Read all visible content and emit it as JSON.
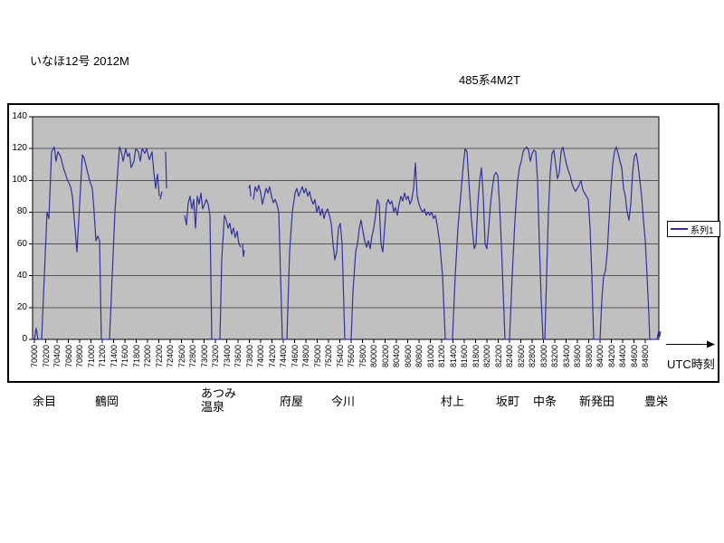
{
  "titles": {
    "train": "いなほ12号 2012M",
    "formation": "485系4M2T"
  },
  "legend": {
    "label": "系列1"
  },
  "x_axis": {
    "unit_label": "UTC時刻"
  },
  "colors": {
    "series_line": "#32329B",
    "plot_background": "#C0C0C0",
    "gridline": "#555555",
    "axis": "#000000"
  },
  "chart_data": {
    "type": "line",
    "title": "いなほ12号 2012M",
    "annotation": "485系4M2T",
    "xlabel": "UTC時刻",
    "ylim": [
      0,
      140
    ],
    "y_tick_step": 20,
    "y_tick_labels": [
      "140",
      "120",
      "100",
      "80",
      "60",
      "40",
      "20",
      "0"
    ],
    "grid": true,
    "legend_position": "right",
    "plot_background": "#C0C0C0",
    "x_time_base": "70000",
    "x_tick_interval_seconds": 120,
    "x_tick_labels": [
      "70000",
      "70200",
      "70400",
      "70600",
      "70800",
      "71000",
      "71200",
      "71400",
      "71600",
      "71800",
      "72000",
      "72200",
      "72400",
      "72600",
      "72800",
      "73000",
      "73200",
      "73400",
      "73600",
      "73800",
      "74000",
      "74200",
      "74400",
      "74600",
      "74800",
      "75000",
      "75200",
      "75400",
      "75600",
      "75800",
      "80000",
      "80200",
      "80400",
      "80600",
      "80800",
      "81000",
      "81200",
      "81400",
      "81600",
      "81800",
      "82000",
      "82200",
      "82400",
      "82600",
      "82800",
      "83000",
      "83200",
      "83400",
      "83600",
      "83800",
      "84000",
      "84200",
      "84400",
      "84600",
      "84800"
    ],
    "stations": [
      {
        "name": "余目",
        "x": 36
      },
      {
        "name": "鶴岡",
        "x": 105
      },
      {
        "name": "あつみ\n温泉",
        "x": 222,
        "y": 427
      },
      {
        "name": "府屋",
        "x": 309
      },
      {
        "name": "今川",
        "x": 366
      },
      {
        "name": "村上",
        "x": 487
      },
      {
        "name": "坂町",
        "x": 548
      },
      {
        "name": "中条",
        "x": 589
      },
      {
        "name": "新発田",
        "x": 640
      },
      {
        "name": "豊栄",
        "x": 712
      }
    ],
    "series": [
      {
        "name": "系列1",
        "color": "#32329B",
        "points_time_speed": [
          [
            0,
            0
          ],
          [
            19,
            7
          ],
          [
            38,
            0
          ],
          [
            77,
            0
          ],
          [
            134,
            80
          ],
          [
            154,
            76
          ],
          [
            182,
            118
          ],
          [
            211,
            121
          ],
          [
            230,
            112
          ],
          [
            250,
            118
          ],
          [
            278,
            115
          ],
          [
            307,
            108
          ],
          [
            346,
            101
          ],
          [
            384,
            96
          ],
          [
            403,
            90
          ],
          [
            451,
            55
          ],
          [
            480,
            85
          ],
          [
            509,
            116
          ],
          [
            528,
            114
          ],
          [
            557,
            107
          ],
          [
            586,
            100
          ],
          [
            614,
            95
          ],
          [
            634,
            80
          ],
          [
            653,
            62
          ],
          [
            672,
            65
          ],
          [
            691,
            62
          ],
          [
            710,
            0
          ],
          [
            797,
            0
          ],
          [
            826,
            40
          ],
          [
            854,
            80
          ],
          [
            883,
            105
          ],
          [
            902,
            121
          ],
          [
            922,
            118
          ],
          [
            941,
            112
          ],
          [
            970,
            120
          ],
          [
            989,
            115
          ],
          [
            1008,
            117
          ],
          [
            1027,
            108
          ],
          [
            1056,
            112
          ],
          [
            1075,
            120
          ],
          [
            1104,
            118
          ],
          [
            1123,
            112
          ],
          [
            1142,
            120
          ],
          [
            1171,
            117
          ],
          [
            1190,
            120
          ],
          [
            1219,
            113
          ],
          [
            1248,
            118
          ],
          [
            1267,
            105
          ],
          [
            1286,
            95
          ],
          [
            1306,
            104
          ],
          [
            1325,
            90
          ],
          null,
          [
            1334,
            88
          ],
          [
            1353,
            93
          ],
          null,
          [
            1392,
            118
          ],
          [
            1402,
            95
          ],
          null,
          [
            1594,
            78
          ],
          [
            1613,
            72
          ],
          [
            1632,
            86
          ],
          [
            1651,
            90
          ],
          [
            1670,
            82
          ],
          [
            1690,
            88
          ],
          [
            1709,
            70
          ],
          [
            1728,
            90
          ],
          [
            1747,
            85
          ],
          [
            1766,
            92
          ],
          [
            1786,
            82
          ],
          [
            1805,
            85
          ],
          [
            1824,
            88
          ],
          [
            1843,
            85
          ],
          [
            1862,
            78
          ],
          [
            1882,
            0
          ],
          [
            1968,
            0
          ],
          [
            1987,
            50
          ],
          [
            2016,
            78
          ],
          [
            2035,
            75
          ],
          [
            2054,
            70
          ],
          [
            2074,
            73
          ],
          [
            2093,
            66
          ],
          [
            2112,
            70
          ],
          [
            2131,
            64
          ],
          [
            2150,
            68
          ],
          [
            2170,
            60
          ],
          [
            2189,
            58
          ],
          null,
          [
            2208,
            60
          ],
          [
            2218,
            52
          ],
          [
            2227,
            56
          ],
          null,
          [
            2275,
            95
          ],
          [
            2285,
            97
          ],
          [
            2295,
            90
          ],
          null,
          [
            2323,
            88
          ],
          [
            2342,
            96
          ],
          [
            2362,
            93
          ],
          [
            2381,
            97
          ],
          [
            2400,
            92
          ],
          [
            2419,
            85
          ],
          [
            2438,
            90
          ],
          [
            2458,
            95
          ],
          [
            2477,
            92
          ],
          [
            2496,
            96
          ],
          [
            2515,
            90
          ],
          [
            2534,
            86
          ],
          [
            2554,
            88
          ],
          [
            2573,
            85
          ],
          [
            2592,
            80
          ],
          [
            2611,
            40
          ],
          [
            2630,
            0
          ],
          [
            2678,
            0
          ],
          [
            2707,
            55
          ],
          [
            2736,
            80
          ],
          [
            2765,
            92
          ],
          [
            2784,
            95
          ],
          [
            2803,
            90
          ],
          [
            2822,
            93
          ],
          [
            2842,
            96
          ],
          [
            2861,
            92
          ],
          [
            2880,
            95
          ],
          [
            2899,
            90
          ],
          [
            2918,
            93
          ],
          [
            2938,
            88
          ],
          [
            2957,
            85
          ],
          [
            2976,
            88
          ],
          [
            2995,
            80
          ],
          [
            3014,
            84
          ],
          [
            3034,
            78
          ],
          [
            3053,
            82
          ],
          [
            3072,
            76
          ],
          [
            3091,
            80
          ],
          [
            3110,
            82
          ],
          [
            3130,
            78
          ],
          [
            3149,
            73
          ],
          [
            3168,
            60
          ],
          [
            3187,
            50
          ],
          [
            3206,
            55
          ],
          [
            3226,
            70
          ],
          [
            3245,
            73
          ],
          [
            3264,
            60
          ],
          [
            3283,
            20
          ],
          [
            3293,
            0
          ],
          [
            3360,
            0
          ],
          [
            3379,
            30
          ],
          [
            3408,
            55
          ],
          [
            3427,
            60
          ],
          [
            3446,
            70
          ],
          [
            3466,
            75
          ],
          [
            3485,
            68
          ],
          [
            3504,
            62
          ],
          [
            3523,
            58
          ],
          [
            3542,
            62
          ],
          [
            3562,
            57
          ],
          [
            3581,
            65
          ],
          [
            3600,
            70
          ],
          [
            3619,
            78
          ],
          [
            3638,
            88
          ],
          [
            3658,
            85
          ],
          [
            3677,
            60
          ],
          [
            3696,
            55
          ],
          [
            3715,
            70
          ],
          [
            3734,
            85
          ],
          [
            3754,
            88
          ],
          [
            3773,
            85
          ],
          [
            3792,
            87
          ],
          [
            3811,
            80
          ],
          [
            3830,
            83
          ],
          [
            3850,
            78
          ],
          [
            3869,
            85
          ],
          [
            3888,
            90
          ],
          [
            3907,
            87
          ],
          [
            3926,
            92
          ],
          [
            3946,
            88
          ],
          [
            3965,
            90
          ],
          [
            3984,
            85
          ],
          [
            4003,
            88
          ],
          [
            4022,
            95
          ],
          [
            4042,
            111
          ],
          [
            4061,
            90
          ],
          [
            4080,
            85
          ],
          [
            4099,
            82
          ],
          [
            4118,
            80
          ],
          [
            4138,
            82
          ],
          [
            4157,
            78
          ],
          [
            4176,
            80
          ],
          [
            4195,
            78
          ],
          [
            4214,
            80
          ],
          [
            4234,
            76
          ],
          [
            4253,
            78
          ],
          [
            4272,
            72
          ],
          [
            4301,
            60
          ],
          [
            4330,
            40
          ],
          [
            4358,
            0
          ],
          [
            4435,
            0
          ],
          [
            4464,
            40
          ],
          [
            4493,
            70
          ],
          [
            4522,
            90
          ],
          [
            4550,
            110
          ],
          [
            4570,
            120
          ],
          [
            4589,
            118
          ],
          [
            4608,
            100
          ],
          [
            4637,
            75
          ],
          [
            4666,
            57
          ],
          [
            4685,
            60
          ],
          [
            4704,
            85
          ],
          [
            4723,
            100
          ],
          [
            4742,
            108
          ],
          [
            4762,
            90
          ],
          [
            4781,
            60
          ],
          [
            4800,
            57
          ],
          [
            4819,
            70
          ],
          [
            4838,
            85
          ],
          [
            4858,
            95
          ],
          [
            4877,
            103
          ],
          [
            4896,
            105
          ],
          [
            4915,
            103
          ],
          [
            4934,
            85
          ],
          [
            4954,
            60
          ],
          [
            4973,
            30
          ],
          [
            4992,
            0
          ],
          [
            5040,
            0
          ],
          [
            5069,
            40
          ],
          [
            5098,
            75
          ],
          [
            5126,
            100
          ],
          [
            5146,
            108
          ],
          [
            5165,
            112
          ],
          [
            5184,
            118
          ],
          [
            5203,
            120
          ],
          [
            5222,
            121
          ],
          [
            5242,
            119
          ],
          [
            5261,
            112
          ],
          [
            5280,
            117
          ],
          [
            5299,
            119
          ],
          [
            5318,
            118
          ],
          [
            5338,
            100
          ],
          [
            5357,
            60
          ],
          [
            5376,
            25
          ],
          [
            5395,
            0
          ],
          [
            5414,
            0
          ],
          [
            5434,
            40
          ],
          [
            5453,
            80
          ],
          [
            5472,
            105
          ],
          [
            5491,
            117
          ],
          [
            5510,
            119
          ],
          [
            5530,
            110
          ],
          [
            5549,
            101
          ],
          [
            5568,
            105
          ],
          [
            5587,
            118
          ],
          [
            5606,
            121
          ],
          [
            5626,
            115
          ],
          [
            5645,
            110
          ],
          [
            5664,
            106
          ],
          [
            5683,
            103
          ],
          [
            5702,
            98
          ],
          [
            5722,
            95
          ],
          [
            5741,
            93
          ],
          [
            5760,
            95
          ],
          [
            5779,
            97
          ],
          [
            5798,
            100
          ],
          [
            5818,
            94
          ],
          [
            5837,
            92
          ],
          [
            5856,
            90
          ],
          [
            5875,
            88
          ],
          [
            5894,
            70
          ],
          [
            5914,
            40
          ],
          [
            5933,
            0
          ],
          [
            6000,
            0
          ],
          [
            6019,
            25
          ],
          [
            6038,
            40
          ],
          [
            6058,
            43
          ],
          [
            6077,
            55
          ],
          [
            6096,
            75
          ],
          [
            6115,
            95
          ],
          [
            6134,
            110
          ],
          [
            6154,
            118
          ],
          [
            6173,
            121
          ],
          [
            6192,
            117
          ],
          [
            6211,
            112
          ],
          [
            6230,
            108
          ],
          [
            6250,
            95
          ],
          [
            6269,
            90
          ],
          [
            6288,
            80
          ],
          [
            6307,
            75
          ],
          [
            6326,
            85
          ],
          [
            6346,
            105
          ],
          [
            6365,
            115
          ],
          [
            6384,
            117
          ],
          [
            6403,
            110
          ],
          [
            6422,
            100
          ],
          [
            6442,
            90
          ],
          [
            6461,
            75
          ],
          [
            6480,
            62
          ],
          [
            6499,
            40
          ],
          [
            6518,
            15
          ],
          [
            6528,
            0
          ],
          [
            6605,
            0
          ],
          [
            6614,
            3
          ],
          [
            6624,
            6
          ],
          [
            6634,
            2
          ],
          [
            6643,
            5
          ]
        ]
      }
    ]
  }
}
